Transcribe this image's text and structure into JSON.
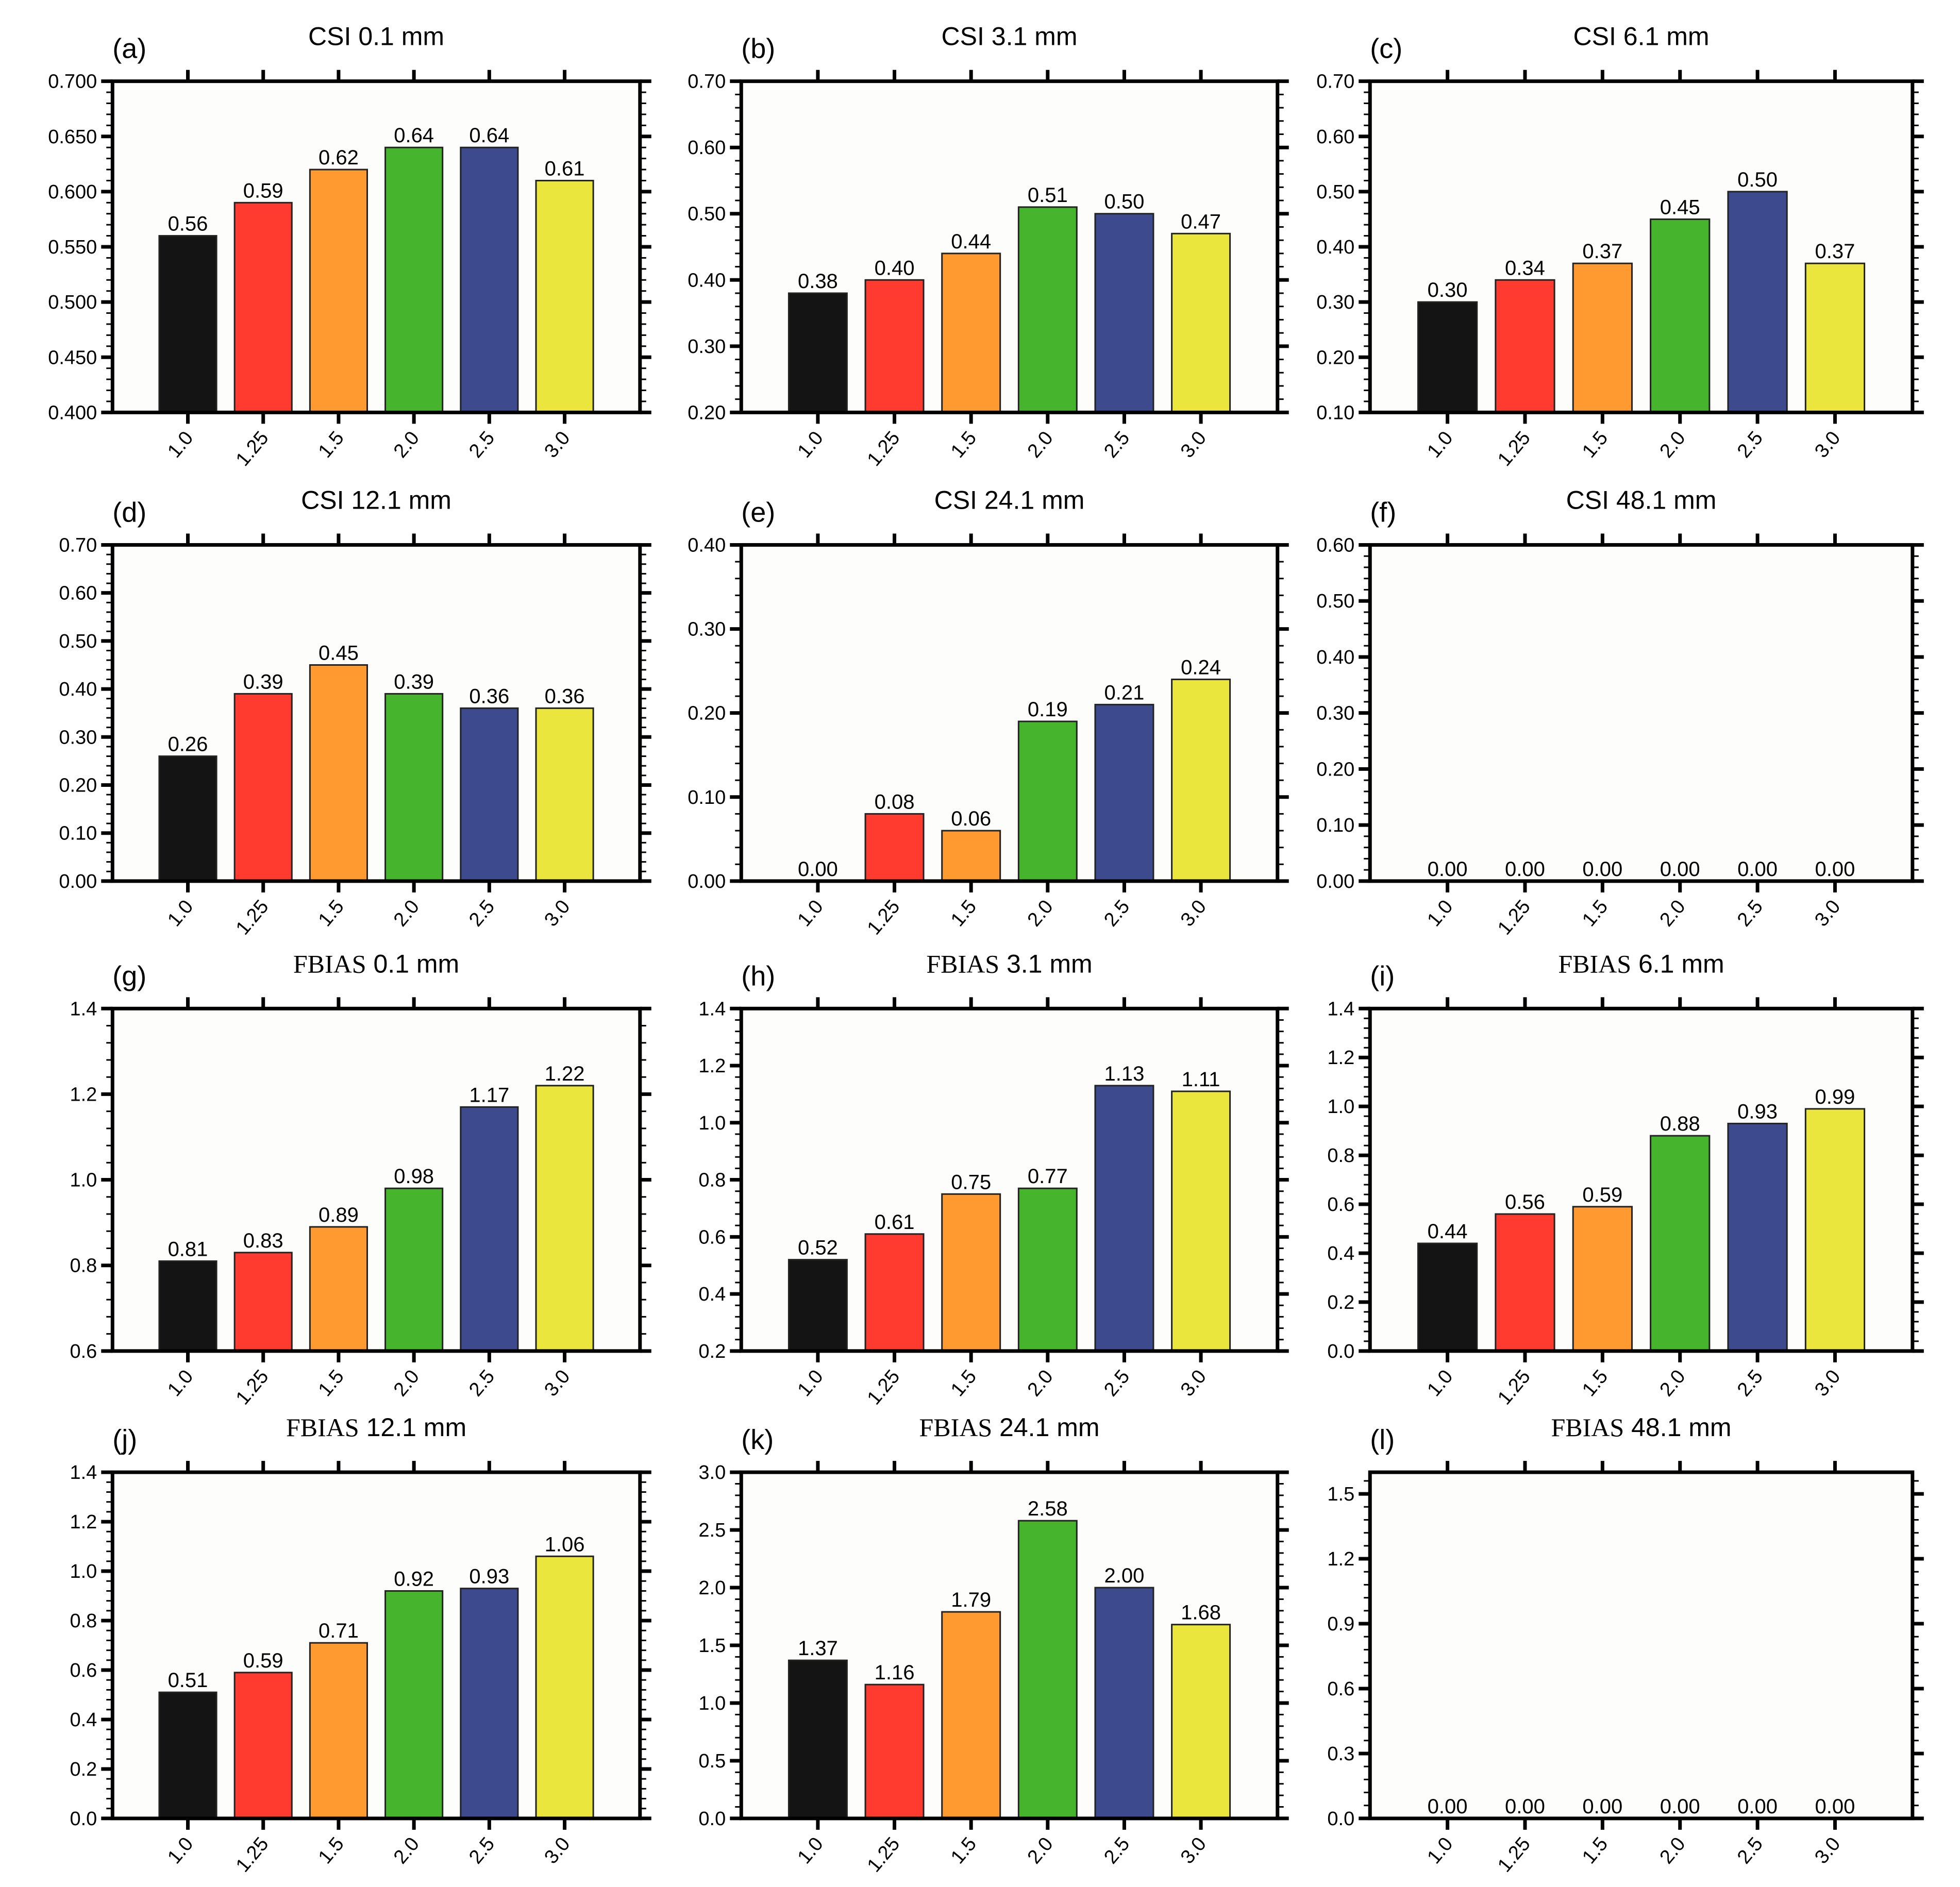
{
  "chart_data": [
    {
      "panel": "(a)",
      "metric": "CSI",
      "threshold": "0.1 mm",
      "type": "bar",
      "categories": [
        "1.0",
        "1.25",
        "1.5",
        "2.0",
        "2.5",
        "3.0"
      ],
      "values": [
        0.56,
        0.59,
        0.62,
        0.64,
        0.64,
        0.61
      ],
      "labels": [
        "0.56",
        "0.59",
        "0.62",
        "0.64",
        "0.64",
        "0.61"
      ],
      "ylim": [
        0.4,
        0.7
      ],
      "yticks": [
        "0.400",
        "0.450",
        "0.500",
        "0.550",
        "0.600",
        "0.650",
        "0.700"
      ]
    },
    {
      "panel": "(b)",
      "metric": "CSI",
      "threshold": "3.1 mm",
      "type": "bar",
      "categories": [
        "1.0",
        "1.25",
        "1.5",
        "2.0",
        "2.5",
        "3.0"
      ],
      "values": [
        0.38,
        0.4,
        0.44,
        0.51,
        0.5,
        0.47
      ],
      "labels": [
        "0.38",
        "0.40",
        "0.44",
        "0.51",
        "0.50",
        "0.47"
      ],
      "ylim": [
        0.2,
        0.7
      ],
      "yticks": [
        "0.20",
        "0.30",
        "0.40",
        "0.50",
        "0.60",
        "0.70"
      ]
    },
    {
      "panel": "(c)",
      "metric": "CSI",
      "threshold": "6.1 mm",
      "type": "bar",
      "categories": [
        "1.0",
        "1.25",
        "1.5",
        "2.0",
        "2.5",
        "3.0"
      ],
      "values": [
        0.3,
        0.34,
        0.37,
        0.45,
        0.5,
        0.37
      ],
      "labels": [
        "0.30",
        "0.34",
        "0.37",
        "0.45",
        "0.50",
        "0.37"
      ],
      "ylim": [
        0.1,
        0.7
      ],
      "yticks": [
        "0.10",
        "0.20",
        "0.30",
        "0.40",
        "0.50",
        "0.60",
        "0.70"
      ]
    },
    {
      "panel": "(d)",
      "metric": "CSI",
      "threshold": "12.1 mm",
      "type": "bar",
      "categories": [
        "1.0",
        "1.25",
        "1.5",
        "2.0",
        "2.5",
        "3.0"
      ],
      "values": [
        0.26,
        0.39,
        0.45,
        0.39,
        0.36,
        0.36
      ],
      "labels": [
        "0.26",
        "0.39",
        "0.45",
        "0.39",
        "0.36",
        "0.36"
      ],
      "ylim": [
        0,
        0.7
      ],
      "yticks": [
        "0.00",
        "0.10",
        "0.20",
        "0.30",
        "0.40",
        "0.50",
        "0.60",
        "0.70"
      ]
    },
    {
      "panel": "(e)",
      "metric": "CSI",
      "threshold": "24.1 mm",
      "type": "bar",
      "categories": [
        "1.0",
        "1.25",
        "1.5",
        "2.0",
        "2.5",
        "3.0"
      ],
      "values": [
        0.0,
        0.08,
        0.06,
        0.19,
        0.21,
        0.24
      ],
      "labels": [
        "0.00",
        "0.08",
        "0.06",
        "0.19",
        "0.21",
        "0.24"
      ],
      "ylim": [
        0,
        0.4
      ],
      "yticks": [
        "0.00",
        "0.10",
        "0.20",
        "0.30",
        "0.40"
      ]
    },
    {
      "panel": "(f)",
      "metric": "CSI",
      "threshold": "48.1 mm",
      "type": "bar",
      "categories": [
        "1.0",
        "1.25",
        "1.5",
        "2.0",
        "2.5",
        "3.0"
      ],
      "values": [
        0,
        0,
        0,
        0,
        0,
        0
      ],
      "labels": [
        "0.00",
        "0.00",
        "0.00",
        "0.00",
        "0.00",
        "0.00"
      ],
      "ylim": [
        0,
        0.6
      ],
      "yticks": [
        "0.00",
        "0.10",
        "0.20",
        "0.30",
        "0.40",
        "0.50",
        "0.60"
      ]
    },
    {
      "panel": "(g)",
      "metric": "FBIAS",
      "threshold": "0.1 mm",
      "type": "bar",
      "categories": [
        "1.0",
        "1.25",
        "1.5",
        "2.0",
        "2.5",
        "3.0"
      ],
      "values": [
        0.81,
        0.83,
        0.89,
        0.98,
        1.17,
        1.22
      ],
      "labels": [
        "0.81",
        "0.83",
        "0.89",
        "0.98",
        "1.17",
        "1.22"
      ],
      "ylim": [
        0.6,
        1.4
      ],
      "yticks": [
        "0.6",
        "0.8",
        "1.0",
        "1.2",
        "1.4"
      ]
    },
    {
      "panel": "(h)",
      "metric": "FBIAS",
      "threshold": "3.1 mm",
      "type": "bar",
      "categories": [
        "1.0",
        "1.25",
        "1.5",
        "2.0",
        "2.5",
        "3.0"
      ],
      "values": [
        0.52,
        0.61,
        0.75,
        0.77,
        1.13,
        1.11
      ],
      "labels": [
        "0.52",
        "0.61",
        "0.75",
        "0.77",
        "1.13",
        "1.11"
      ],
      "ylim": [
        0.2,
        1.4
      ],
      "yticks": [
        "0.2",
        "0.4",
        "0.6",
        "0.8",
        "1.0",
        "1.2",
        "1.4"
      ]
    },
    {
      "panel": "(i)",
      "metric": "FBIAS",
      "threshold": "6.1 mm",
      "type": "bar",
      "categories": [
        "1.0",
        "1.25",
        "1.5",
        "2.0",
        "2.5",
        "3.0"
      ],
      "values": [
        0.44,
        0.56,
        0.59,
        0.88,
        0.93,
        0.99
      ],
      "labels": [
        "0.44",
        "0.56",
        "0.59",
        "0.88",
        "0.93",
        "0.99"
      ],
      "ylim": [
        0,
        1.4
      ],
      "yticks": [
        "0.0",
        "0.2",
        "0.4",
        "0.6",
        "0.8",
        "1.0",
        "1.2",
        "1.4"
      ]
    },
    {
      "panel": "(j)",
      "metric": "FBIAS",
      "threshold": "12.1 mm",
      "type": "bar",
      "categories": [
        "1.0",
        "1.25",
        "1.5",
        "2.0",
        "2.5",
        "3.0"
      ],
      "values": [
        0.51,
        0.59,
        0.71,
        0.92,
        0.93,
        1.06
      ],
      "labels": [
        "0.51",
        "0.59",
        "0.71",
        "0.92",
        "0.93",
        "1.06"
      ],
      "ylim": [
        0,
        1.4
      ],
      "yticks": [
        "0.0",
        "0.2",
        "0.4",
        "0.6",
        "0.8",
        "1.0",
        "1.2",
        "1.4"
      ]
    },
    {
      "panel": "(k)",
      "metric": "FBIAS",
      "threshold": "24.1 mm",
      "type": "bar",
      "categories": [
        "1.0",
        "1.25",
        "1.5",
        "2.0",
        "2.5",
        "3.0"
      ],
      "values": [
        1.37,
        1.16,
        1.79,
        2.58,
        2.0,
        1.68
      ],
      "labels": [
        "1.37",
        "1.16",
        "1.79",
        "2.58",
        "2.00",
        "1.68"
      ],
      "ylim": [
        0,
        3.0
      ],
      "yticks": [
        "0.0",
        "0.5",
        "1.0",
        "1.5",
        "2.0",
        "2.5",
        "3.0"
      ]
    },
    {
      "panel": "(l)",
      "metric": "FBIAS",
      "threshold": "48.1 mm",
      "type": "bar",
      "categories": [
        "1.0",
        "1.25",
        "1.5",
        "2.0",
        "2.5",
        "3.0"
      ],
      "values": [
        0,
        0,
        0,
        0,
        0,
        0
      ],
      "labels": [
        "0.00",
        "0.00",
        "0.00",
        "0.00",
        "0.00",
        "0.00"
      ],
      "ylim": [
        0,
        1.6
      ],
      "yticks": [
        "0.0",
        "0.3",
        "0.6",
        "0.9",
        "1.2",
        "1.5"
      ],
      "ytick_step": 0.3
    }
  ],
  "bar_colors": [
    "#141414",
    "#ff3a2e",
    "#ff9a30",
    "#46b42c",
    "#3d4b8e",
    "#eae63e"
  ]
}
